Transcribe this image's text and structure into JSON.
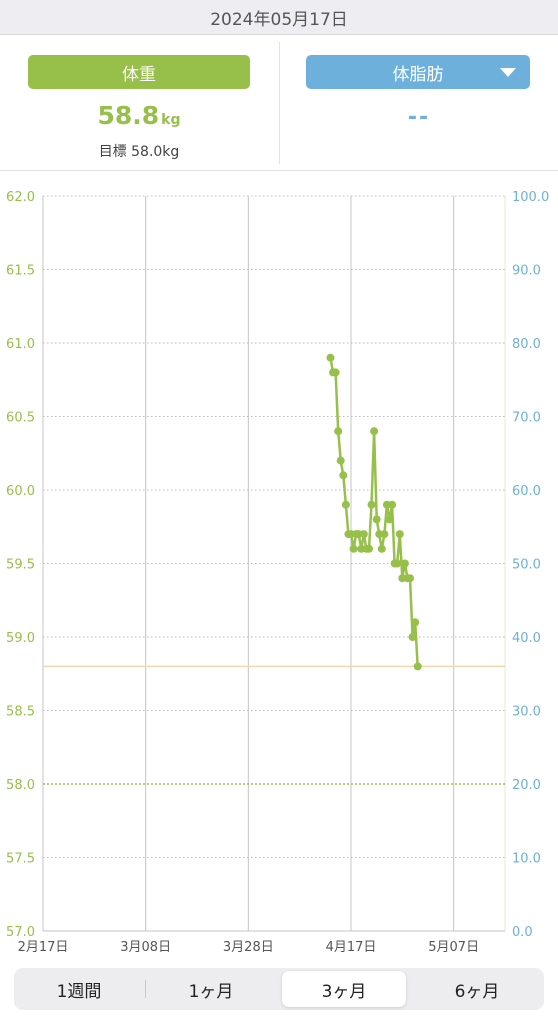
{
  "header": {
    "date": "2024年05月17日"
  },
  "weight_panel": {
    "label": "体重",
    "value": "58.8",
    "unit": "kg",
    "target": "目標 58.0kg"
  },
  "fat_panel": {
    "label": "体脂肪",
    "value": "--"
  },
  "tabs": [
    {
      "label": "1週間",
      "active": false
    },
    {
      "label": "1ヶ月",
      "active": false
    },
    {
      "label": "3ヶ月",
      "active": true
    },
    {
      "label": "6ヶ月",
      "active": false
    }
  ],
  "colors": {
    "weight": "#97c04a",
    "fat": "#6eb0dc",
    "target_line": "#97c04a",
    "current_line": "#f0d8b0"
  },
  "chart_data": {
    "type": "line",
    "title": "",
    "y_left": {
      "min": 57.0,
      "max": 62.0,
      "ticks": [
        "57.0",
        "57.5",
        "58.0",
        "58.5",
        "59.0",
        "59.5",
        "60.0",
        "60.5",
        "61.0",
        "61.5",
        "62.0"
      ]
    },
    "y_right": {
      "min": 0.0,
      "max": 100.0,
      "ticks": [
        "0.0",
        "10.0",
        "20.0",
        "30.0",
        "40.0",
        "50.0",
        "60.0",
        "70.0",
        "80.0",
        "90.0",
        "100.0"
      ]
    },
    "x_ticks": [
      "2月17日",
      "3月08日",
      "3月28日",
      "4月17日",
      "5月07日"
    ],
    "x_tick_dates": [
      "2024-02-17",
      "2024-03-08",
      "2024-03-28",
      "2024-04-17",
      "2024-05-07"
    ],
    "x_range": [
      "2024-02-17",
      "2024-05-17"
    ],
    "target_weight": 58.0,
    "current_weight": 58.8,
    "series": [
      {
        "values": [
          [
            "2024-04-13",
            60.9
          ],
          [
            "2024-04-13T12",
            60.8
          ],
          [
            "2024-04-14",
            60.8
          ],
          [
            "2024-04-14T12",
            60.4
          ],
          [
            "2024-04-15",
            60.2
          ],
          [
            "2024-04-15T12",
            60.1
          ],
          [
            "2024-04-16",
            59.9
          ],
          [
            "2024-04-16T12",
            59.7
          ],
          [
            "2024-04-17",
            59.7
          ],
          [
            "2024-04-17T12",
            59.6
          ],
          [
            "2024-04-18",
            59.7
          ],
          [
            "2024-04-18T12",
            59.7
          ],
          [
            "2024-04-19",
            59.6
          ],
          [
            "2024-04-19T12",
            59.7
          ],
          [
            "2024-04-20",
            59.6
          ],
          [
            "2024-04-20T12",
            59.6
          ],
          [
            "2024-04-21",
            59.9
          ],
          [
            "2024-04-21T12",
            60.4
          ],
          [
            "2024-04-22",
            59.8
          ],
          [
            "2024-04-22T12",
            59.7
          ],
          [
            "2024-04-23",
            59.6
          ],
          [
            "2024-04-23T12",
            59.7
          ],
          [
            "2024-04-24",
            59.9
          ],
          [
            "2024-04-24T12",
            59.8
          ],
          [
            "2024-04-25",
            59.9
          ],
          [
            "2024-04-25T12",
            59.5
          ],
          [
            "2024-04-26",
            59.5
          ],
          [
            "2024-04-26T12",
            59.7
          ],
          [
            "2024-04-27",
            59.4
          ],
          [
            "2024-04-27T12",
            59.5
          ],
          [
            "2024-04-28",
            59.4
          ],
          [
            "2024-04-28T12",
            59.4
          ],
          [
            "2024-04-29",
            59.0
          ],
          [
            "2024-04-29T12",
            59.1
          ],
          [
            "2024-04-30",
            58.8
          ]
        ]
      }
    ]
  }
}
